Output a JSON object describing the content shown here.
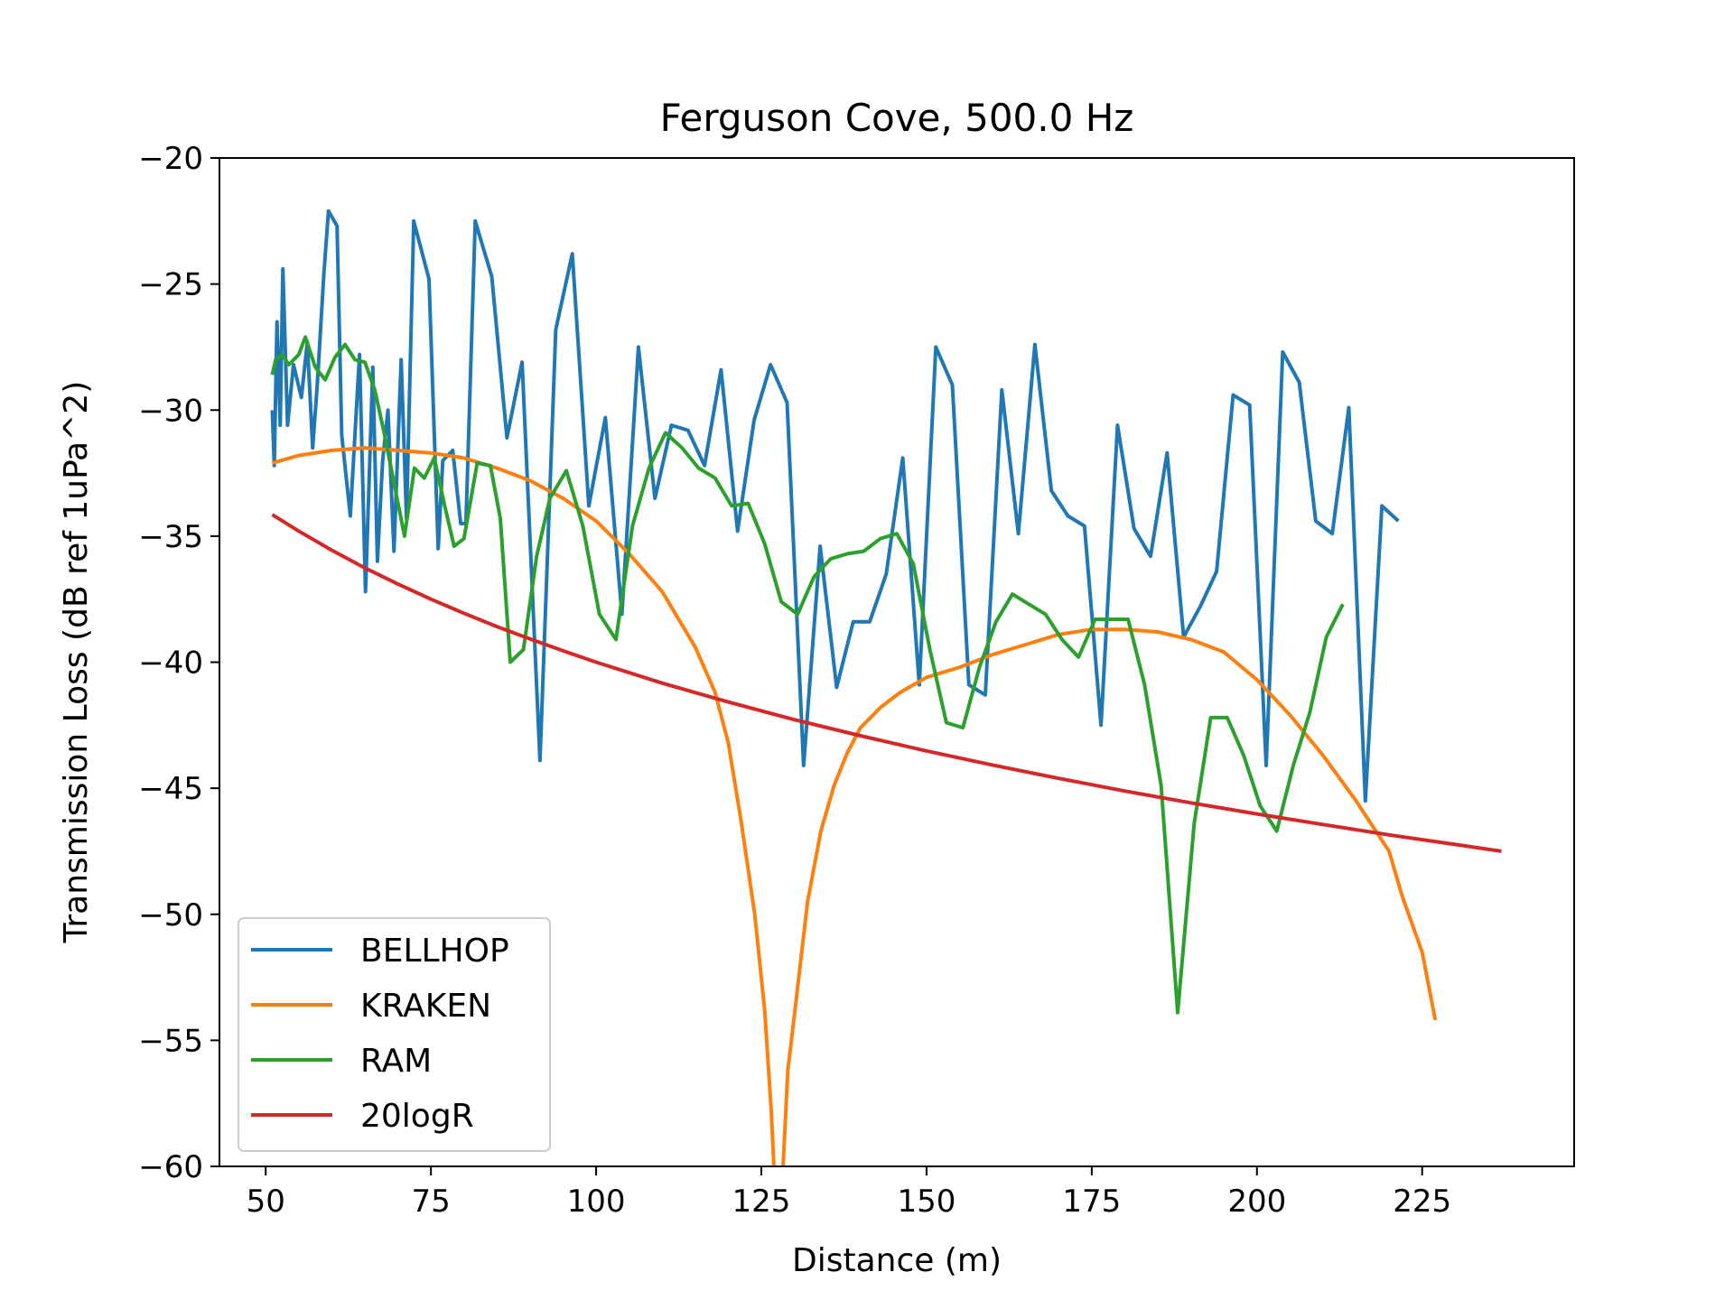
{
  "chart_data": {
    "type": "line",
    "title": "Ferguson Cove, 500.0 Hz",
    "xlabel": "Distance (m)",
    "ylabel": "Transmission Loss (dB ref 1uPa^2)",
    "xlim": [
      43,
      248
    ],
    "ylim": [
      -60,
      -20
    ],
    "xticks": [
      50,
      75,
      100,
      125,
      150,
      175,
      200,
      225
    ],
    "yticks": [
      -20,
      -25,
      -30,
      -35,
      -40,
      -45,
      -50,
      -55,
      -60
    ],
    "xtick_labels": [
      "50",
      "75",
      "100",
      "125",
      "150",
      "175",
      "200",
      "225"
    ],
    "ytick_labels": [
      "−20",
      "−25",
      "−30",
      "−35",
      "−40",
      "−45",
      "−50",
      "−55",
      "−60"
    ],
    "grid": false,
    "legend_position": "lower-left",
    "series": [
      {
        "name": "BELLHOP",
        "color": "#1f77b4",
        "points": [
          [
            51,
            -30
          ],
          [
            51.3,
            -32.2
          ],
          [
            51.7,
            -26.5
          ],
          [
            52.2,
            -30.6
          ],
          [
            52.6,
            -24.4
          ],
          [
            53.3,
            -30.6
          ],
          [
            54.2,
            -28.2
          ],
          [
            55.4,
            -29.5
          ],
          [
            56.3,
            -27.3
          ],
          [
            57.1,
            -31.5
          ],
          [
            57.8,
            -29
          ],
          [
            58.8,
            -24.6
          ],
          [
            59.5,
            -22.1
          ],
          [
            60.8,
            -22.7
          ],
          [
            61.5,
            -31
          ],
          [
            62.8,
            -34.2
          ],
          [
            64.2,
            -27.8
          ],
          [
            65.1,
            -37.2
          ],
          [
            66.2,
            -28.3
          ],
          [
            66.9,
            -36
          ],
          [
            67.7,
            -32
          ],
          [
            68.5,
            -30
          ],
          [
            69.4,
            -35.6
          ],
          [
            70.5,
            -28
          ],
          [
            71.3,
            -34.3
          ],
          [
            72.4,
            -22.5
          ],
          [
            74.7,
            -24.8
          ],
          [
            76.1,
            -35.5
          ],
          [
            76.8,
            -32
          ],
          [
            78.3,
            -31.6
          ],
          [
            79.5,
            -34.5
          ],
          [
            80.3,
            -34.5
          ],
          [
            81.7,
            -22.5
          ],
          [
            84.2,
            -24.7
          ],
          [
            86.5,
            -31.1
          ],
          [
            88.8,
            -28.1
          ],
          [
            91.5,
            -43.9
          ],
          [
            93.9,
            -26.8
          ],
          [
            96.4,
            -23.8
          ],
          [
            98.9,
            -33.8
          ],
          [
            101.4,
            -30.3
          ],
          [
            103.9,
            -38.1
          ],
          [
            106.4,
            -27.5
          ],
          [
            108.9,
            -33.5
          ],
          [
            111.4,
            -30.6
          ],
          [
            113.9,
            -30.8
          ],
          [
            116.4,
            -32.2
          ],
          [
            118.9,
            -28.4
          ],
          [
            121.4,
            -34.8
          ],
          [
            123.9,
            -30.4
          ],
          [
            126.4,
            -28.2
          ],
          [
            128.9,
            -29.7
          ],
          [
            131.4,
            -44.1
          ],
          [
            133.9,
            -35.4
          ],
          [
            136.4,
            -41
          ],
          [
            138.9,
            -38.4
          ],
          [
            141.4,
            -38.4
          ],
          [
            143.9,
            -36.5
          ],
          [
            146.4,
            -31.9
          ],
          [
            148.9,
            -40.9
          ],
          [
            151.4,
            -27.5
          ],
          [
            153.9,
            -29
          ],
          [
            156.4,
            -40.9
          ],
          [
            158.9,
            -41.3
          ],
          [
            161.4,
            -29.2
          ],
          [
            163.9,
            -34.9
          ],
          [
            166.4,
            -27.4
          ],
          [
            168.9,
            -33.2
          ],
          [
            171.4,
            -34.2
          ],
          [
            173.9,
            -34.6
          ],
          [
            176.4,
            -42.5
          ],
          [
            178.9,
            -30.6
          ],
          [
            181.4,
            -34.7
          ],
          [
            183.9,
            -35.8
          ],
          [
            186.4,
            -31.7
          ],
          [
            188.9,
            -39
          ],
          [
            191.4,
            -37.8
          ],
          [
            193.9,
            -36.4
          ],
          [
            196.4,
            -29.4
          ],
          [
            198.9,
            -29.8
          ],
          [
            201.4,
            -44.1
          ],
          [
            203.9,
            -27.7
          ],
          [
            206.4,
            -28.9
          ],
          [
            208.9,
            -34.4
          ],
          [
            211.4,
            -34.9
          ],
          [
            213.9,
            -29.9
          ],
          [
            216.4,
            -45.5
          ],
          [
            218.9,
            -33.8
          ],
          [
            221.4,
            -34.4
          ]
        ]
      },
      {
        "name": "KRAKEN",
        "color": "#ff7f0e",
        "points": [
          [
            51,
            -32.1
          ],
          [
            55,
            -31.8
          ],
          [
            60,
            -31.6
          ],
          [
            65,
            -31.5
          ],
          [
            70,
            -31.6
          ],
          [
            75,
            -31.7
          ],
          [
            80,
            -31.9
          ],
          [
            85,
            -32.3
          ],
          [
            90,
            -32.8
          ],
          [
            95,
            -33.5
          ],
          [
            100,
            -34.4
          ],
          [
            105,
            -35.7
          ],
          [
            110,
            -37.2
          ],
          [
            115,
            -39.4
          ],
          [
            118,
            -41.2
          ],
          [
            120,
            -43.2
          ],
          [
            122,
            -46.4
          ],
          [
            124,
            -50
          ],
          [
            125.5,
            -53.8
          ],
          [
            126.5,
            -57.8
          ],
          [
            127,
            -60.5
          ],
          [
            128.2,
            -60.5
          ],
          [
            129,
            -56.2
          ],
          [
            130,
            -54
          ],
          [
            132,
            -49.5
          ],
          [
            134,
            -46.7
          ],
          [
            136,
            -44.9
          ],
          [
            138,
            -43.6
          ],
          [
            140,
            -42.6
          ],
          [
            143,
            -41.8
          ],
          [
            146,
            -41.2
          ],
          [
            150,
            -40.6
          ],
          [
            155,
            -40.2
          ],
          [
            160,
            -39.7
          ],
          [
            165,
            -39.3
          ],
          [
            170,
            -38.9
          ],
          [
            175,
            -38.7
          ],
          [
            180,
            -38.7
          ],
          [
            185,
            -38.8
          ],
          [
            190,
            -39.1
          ],
          [
            195,
            -39.6
          ],
          [
            200,
            -40.7
          ],
          [
            205,
            -42.1
          ],
          [
            210,
            -43.7
          ],
          [
            215,
            -45.5
          ],
          [
            220,
            -47.5
          ],
          [
            222,
            -49.3
          ],
          [
            225,
            -51.5
          ],
          [
            227,
            -54.2
          ]
        ]
      },
      {
        "name": "RAM",
        "color": "#2ca02c",
        "points": [
          [
            51,
            -28.6
          ],
          [
            51.5,
            -28
          ],
          [
            52.5,
            -27.8
          ],
          [
            53.5,
            -28.2
          ],
          [
            55,
            -27.8
          ],
          [
            56,
            -27.1
          ],
          [
            57.5,
            -28.3
          ],
          [
            59,
            -28.8
          ],
          [
            60.5,
            -27.9
          ],
          [
            62,
            -27.4
          ],
          [
            63.5,
            -28
          ],
          [
            65,
            -28.1
          ],
          [
            66.5,
            -29.2
          ],
          [
            68,
            -31
          ],
          [
            69.5,
            -33
          ],
          [
            71,
            -35
          ],
          [
            72.5,
            -32.3
          ],
          [
            74,
            -32.7
          ],
          [
            75.5,
            -31.9
          ],
          [
            77,
            -33.7
          ],
          [
            78.5,
            -35.4
          ],
          [
            80,
            -35.1
          ],
          [
            82,
            -32.1
          ],
          [
            84,
            -32.2
          ],
          [
            85.5,
            -34.3
          ],
          [
            87,
            -40
          ],
          [
            89,
            -39.5
          ],
          [
            91,
            -35.8
          ],
          [
            93,
            -33.5
          ],
          [
            95.5,
            -32.4
          ],
          [
            98,
            -34.6
          ],
          [
            100.5,
            -38.1
          ],
          [
            103,
            -39.1
          ],
          [
            105.5,
            -34.6
          ],
          [
            108,
            -32.3
          ],
          [
            110.5,
            -30.9
          ],
          [
            113,
            -31.5
          ],
          [
            115.5,
            -32.3
          ],
          [
            118,
            -32.7
          ],
          [
            120.5,
            -33.8
          ],
          [
            123,
            -33.7
          ],
          [
            125.5,
            -35.3
          ],
          [
            128,
            -37.6
          ],
          [
            130.5,
            -38.1
          ],
          [
            133,
            -36.6
          ],
          [
            135.5,
            -35.9
          ],
          [
            138,
            -35.7
          ],
          [
            140.5,
            -35.6
          ],
          [
            143,
            -35.1
          ],
          [
            145.5,
            -34.9
          ],
          [
            148,
            -36.1
          ],
          [
            150.5,
            -39.5
          ],
          [
            153,
            -42.4
          ],
          [
            155.5,
            -42.6
          ],
          [
            158,
            -40.2
          ],
          [
            160.5,
            -38.4
          ],
          [
            163,
            -37.3
          ],
          [
            165.5,
            -37.7
          ],
          [
            168,
            -38.1
          ],
          [
            170.5,
            -39.1
          ],
          [
            173,
            -39.8
          ],
          [
            175.5,
            -38.3
          ],
          [
            178,
            -38.3
          ],
          [
            180.5,
            -38.3
          ],
          [
            183,
            -40.9
          ],
          [
            185.5,
            -44.9
          ],
          [
            188,
            -53.9
          ],
          [
            190.5,
            -46.4
          ],
          [
            193,
            -42.2
          ],
          [
            195.5,
            -42.2
          ],
          [
            198,
            -43.7
          ],
          [
            200.5,
            -45.7
          ],
          [
            203,
            -46.7
          ],
          [
            205.5,
            -44.1
          ],
          [
            208,
            -42
          ],
          [
            210.5,
            -39
          ],
          [
            213,
            -37.7
          ]
        ]
      },
      {
        "name": "20logR",
        "color": "#d62728",
        "points": [
          [
            51,
            -34.15
          ],
          [
            55,
            -34.8
          ],
          [
            60,
            -35.56
          ],
          [
            65,
            -36.26
          ],
          [
            70,
            -36.9
          ],
          [
            75,
            -37.5
          ],
          [
            80,
            -38.06
          ],
          [
            85,
            -38.59
          ],
          [
            90,
            -39.08
          ],
          [
            95,
            -39.55
          ],
          [
            100,
            -40
          ],
          [
            110,
            -40.83
          ],
          [
            120,
            -41.58
          ],
          [
            130,
            -42.28
          ],
          [
            140,
            -42.92
          ],
          [
            150,
            -43.52
          ],
          [
            160,
            -44.08
          ],
          [
            170,
            -44.61
          ],
          [
            180,
            -45.11
          ],
          [
            190,
            -45.58
          ],
          [
            200,
            -46.02
          ],
          [
            210,
            -46.44
          ],
          [
            220,
            -46.85
          ],
          [
            230,
            -47.23
          ],
          [
            237,
            -47.5
          ]
        ]
      }
    ]
  }
}
